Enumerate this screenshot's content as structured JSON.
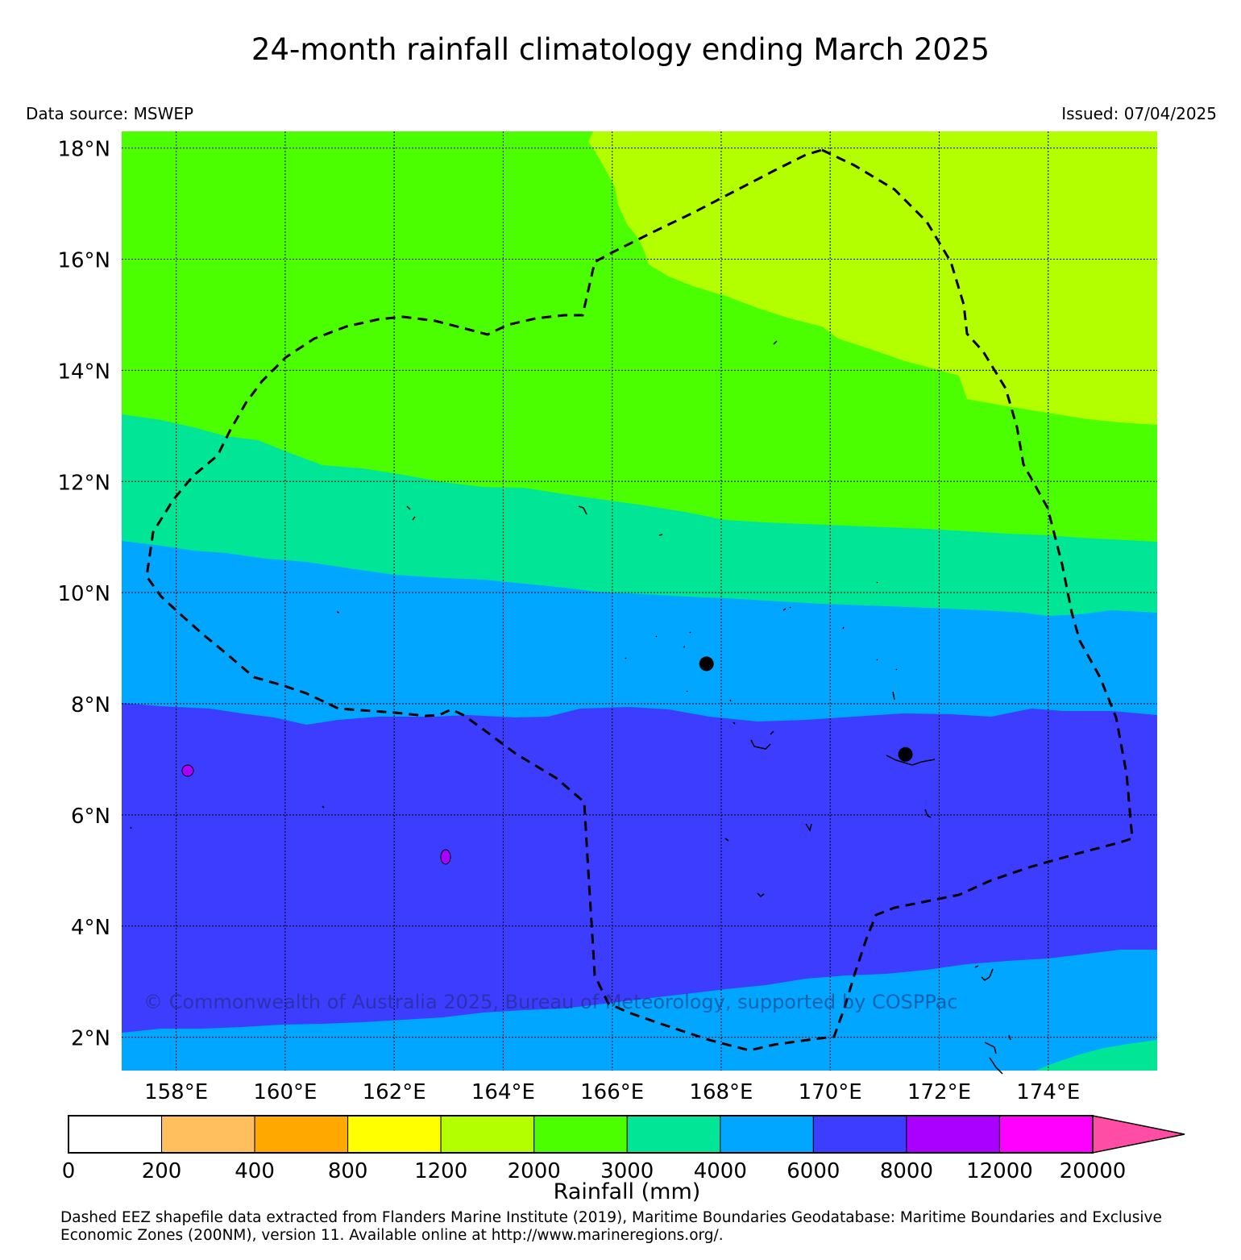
{
  "header": {
    "title": "24-month rainfall climatology ending March 2025",
    "data_source": "Data source: MSWEP",
    "issued": "Issued: 07/04/2025"
  },
  "map": {
    "lat_labels": [
      "18°N",
      "16°N",
      "14°N",
      "12°N",
      "10°N",
      "8°N",
      "6°N",
      "4°N",
      "2°N"
    ],
    "lon_labels": [
      "158°E",
      "160°E",
      "162°E",
      "164°E",
      "166°E",
      "168°E",
      "170°E",
      "172°E",
      "174°E"
    ],
    "lon_range": [
      157.0,
      176.0
    ],
    "lat_range": [
      1.4,
      18.3
    ],
    "watermark": "© Commonwealth of Australia 2025, Bureau of Meteorology, supported by COSPPac",
    "band_colors": {
      "b1200_2000": "#b3ff00",
      "b2000_3000": "#4cff00",
      "b3000_4000": "#00e696",
      "b4000_6000": "#00a6ff",
      "b6000_8000": "#3d3dff",
      "b8000_12000": "#aa00ff"
    },
    "markers": [
      {
        "name": "city-marker-1",
        "lon": 167.73,
        "lat": 8.72
      },
      {
        "name": "city-marker-2",
        "lon": 171.38,
        "lat": 7.09
      }
    ]
  },
  "colorbar": {
    "ticks": [
      "0",
      "200",
      "400",
      "800",
      "1200",
      "2000",
      "3000",
      "4000",
      "6000",
      "8000",
      "12000",
      "20000"
    ],
    "colors": [
      "#ffffff",
      "#ffbf5e",
      "#ffa800",
      "#ffff00",
      "#b3ff00",
      "#4cff00",
      "#00e696",
      "#00a6ff",
      "#3d3dff",
      "#aa00ff",
      "#ff00ff"
    ],
    "extend_color": "#ff4da6",
    "label": "Rainfall (mm)"
  },
  "footnote": "Dashed EEZ shapefile data extracted from Flanders Marine Institute (2019), Maritime Boundaries Geodatabase: Maritime Boundaries and Exclusive Economic Zones (200NM), version 11. Available online at http://www.marineregions.org/."
}
